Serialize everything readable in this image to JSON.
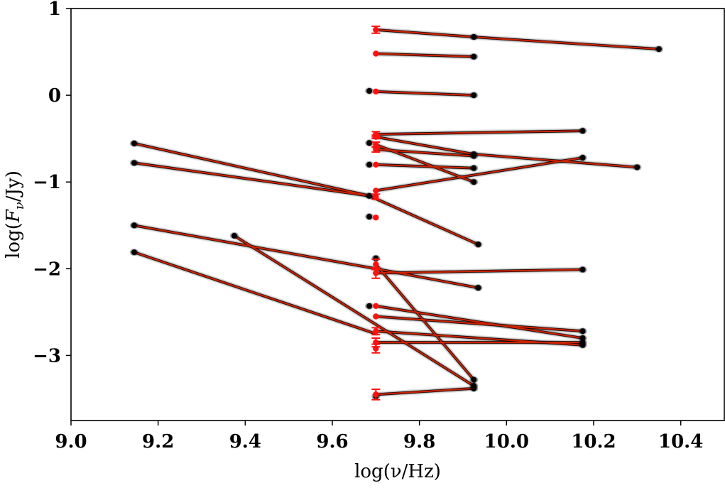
{
  "chart_data": {
    "type": "line",
    "xlabel": "log(ν/Hz)",
    "ylabel_text": {
      "prefix": "log(",
      "var": "F",
      "sub": "ν",
      "suffix": "/Jy)"
    },
    "xlim": [
      9.0,
      10.5
    ],
    "ylim": [
      -3.75,
      1.0
    ],
    "xticks": [
      9.0,
      9.2,
      9.4,
      9.6,
      9.8,
      10.0,
      10.2,
      10.4
    ],
    "xtick_labels": [
      "9.0",
      "9.2",
      "9.4",
      "9.6",
      "9.8",
      "10.0",
      "10.2",
      "10.4"
    ],
    "yticks": [
      1,
      0,
      -1,
      -2,
      -3
    ],
    "ytick_labels": [
      "1",
      "0",
      "−1",
      "−2",
      "−3"
    ],
    "grid": false,
    "colors": {
      "line": "#cc2200",
      "marker": "#ff1010",
      "shadow": "#000000"
    },
    "series": [
      {
        "x": [
          9.7,
          9.925
        ],
        "y": [
          0.755,
          0.672
        ]
      },
      {
        "x": [
          9.925,
          10.35
        ],
        "y": [
          0.672,
          0.532
        ]
      },
      {
        "x": [
          9.7,
          9.925
        ],
        "y": [
          0.48,
          0.445
        ]
      },
      {
        "x": [
          9.7,
          9.925
        ],
        "y": [
          0.043,
          0.0
        ]
      },
      {
        "x": [
          9.7,
          10.175
        ],
        "y": [
          -0.45,
          -0.41
        ]
      },
      {
        "x": [
          9.7,
          9.925
        ],
        "y": [
          -0.48,
          -0.68
        ]
      },
      {
        "x": [
          9.925,
          10.3
        ],
        "y": [
          -0.68,
          -0.83
        ]
      },
      {
        "x": [
          9.7,
          9.925
        ],
        "y": [
          -0.57,
          -1.0
        ]
      },
      {
        "x": [
          9.7,
          9.925
        ],
        "y": [
          -0.625,
          -0.7
        ]
      },
      {
        "x": [
          9.7,
          9.925
        ],
        "y": [
          -0.8,
          -0.84
        ]
      },
      {
        "x": [
          9.7,
          10.175
        ],
        "y": [
          -1.1,
          -0.72
        ]
      },
      {
        "x": [
          9.145,
          9.685
        ],
        "y": [
          -0.555,
          -1.16
        ]
      },
      {
        "x": [
          9.145,
          9.685
        ],
        "y": [
          -0.78,
          -1.16
        ]
      },
      {
        "x": [
          9.685,
          9.935
        ],
        "y": [
          -1.16,
          -1.72
        ]
      },
      {
        "x": [
          9.145,
          9.7
        ],
        "y": [
          -1.5,
          -2.0
        ]
      },
      {
        "x": [
          9.7,
          9.935
        ],
        "y": [
          -2.0,
          -2.22
        ]
      },
      {
        "x": [
          9.145,
          9.7
        ],
        "y": [
          -1.81,
          -2.75
        ]
      },
      {
        "x": [
          9.375,
          9.925
        ],
        "y": [
          -1.62,
          -3.35
        ]
      },
      {
        "x": [
          9.7,
          10.175
        ],
        "y": [
          -2.05,
          -2.01
        ]
      },
      {
        "x": [
          9.7,
          10.175
        ],
        "y": [
          -2.43,
          -2.8
        ]
      },
      {
        "x": [
          9.7,
          10.175
        ],
        "y": [
          -2.55,
          -2.72
        ]
      },
      {
        "x": [
          9.7,
          10.175
        ],
        "y": [
          -2.72,
          -2.88
        ]
      },
      {
        "x": [
          9.7,
          10.175
        ],
        "y": [
          -2.85,
          -2.85
        ]
      },
      {
        "x": [
          9.7,
          9.925
        ],
        "y": [
          -1.95,
          -3.28
        ]
      },
      {
        "x": [
          9.7,
          9.925
        ],
        "y": [
          -3.45,
          -3.38
        ]
      }
    ],
    "red_points": [
      {
        "x": 9.7,
        "y": 0.755,
        "err": 0.04
      },
      {
        "x": 9.7,
        "y": 0.48,
        "err": 0.0
      },
      {
        "x": 9.7,
        "y": 0.043,
        "err": 0.0
      },
      {
        "x": 9.7,
        "y": -0.45,
        "err": 0.03
      },
      {
        "x": 9.7,
        "y": -0.48,
        "err": 0.02
      },
      {
        "x": 9.7,
        "y": -0.57,
        "err": 0.03
      },
      {
        "x": 9.7,
        "y": -0.625,
        "err": 0.03
      },
      {
        "x": 9.7,
        "y": -0.8,
        "err": 0.0
      },
      {
        "x": 9.7,
        "y": -1.1,
        "err": 0.0
      },
      {
        "x": 9.7,
        "y": -1.17,
        "err": 0.03
      },
      {
        "x": 9.7,
        "y": -1.41,
        "err": 0.0
      },
      {
        "x": 9.7,
        "y": -1.95,
        "err": 0.06
      },
      {
        "x": 9.7,
        "y": -2.05,
        "err": 0.06
      },
      {
        "x": 9.7,
        "y": -2.43,
        "err": 0.0
      },
      {
        "x": 9.7,
        "y": -2.55,
        "err": 0.0
      },
      {
        "x": 9.7,
        "y": -2.72,
        "err": 0.04
      },
      {
        "x": 9.7,
        "y": -2.85,
        "err": 0.05
      },
      {
        "x": 9.7,
        "y": -2.92,
        "err": 0.05
      },
      {
        "x": 9.7,
        "y": -3.45,
        "err": 0.06
      }
    ],
    "black_points": [
      {
        "x": 9.925,
        "y": 0.672
      },
      {
        "x": 10.35,
        "y": 0.532
      },
      {
        "x": 9.925,
        "y": 0.445
      },
      {
        "x": 9.925,
        "y": 0.0
      },
      {
        "x": 9.685,
        "y": 0.05
      },
      {
        "x": 10.175,
        "y": -0.41
      },
      {
        "x": 9.925,
        "y": -0.68
      },
      {
        "x": 10.3,
        "y": -0.83
      },
      {
        "x": 9.925,
        "y": -1.0
      },
      {
        "x": 9.925,
        "y": -0.7
      },
      {
        "x": 9.925,
        "y": -0.84
      },
      {
        "x": 10.175,
        "y": -0.72
      },
      {
        "x": 9.685,
        "y": -0.55
      },
      {
        "x": 9.685,
        "y": -0.8
      },
      {
        "x": 9.685,
        "y": -1.16
      },
      {
        "x": 9.685,
        "y": -1.4
      },
      {
        "x": 9.145,
        "y": -0.555
      },
      {
        "x": 9.145,
        "y": -0.78
      },
      {
        "x": 9.935,
        "y": -1.72
      },
      {
        "x": 9.145,
        "y": -1.5
      },
      {
        "x": 9.935,
        "y": -2.22
      },
      {
        "x": 9.145,
        "y": -1.81
      },
      {
        "x": 9.375,
        "y": -1.62
      },
      {
        "x": 9.925,
        "y": -3.35
      },
      {
        "x": 10.175,
        "y": -2.01
      },
      {
        "x": 10.175,
        "y": -2.8
      },
      {
        "x": 10.175,
        "y": -2.72
      },
      {
        "x": 10.175,
        "y": -2.88
      },
      {
        "x": 10.175,
        "y": -2.85
      },
      {
        "x": 9.925,
        "y": -3.28
      },
      {
        "x": 9.925,
        "y": -3.38
      },
      {
        "x": 9.7,
        "y": -3.47
      },
      {
        "x": 9.685,
        "y": -2.43
      },
      {
        "x": 9.7,
        "y": -1.88
      }
    ]
  }
}
